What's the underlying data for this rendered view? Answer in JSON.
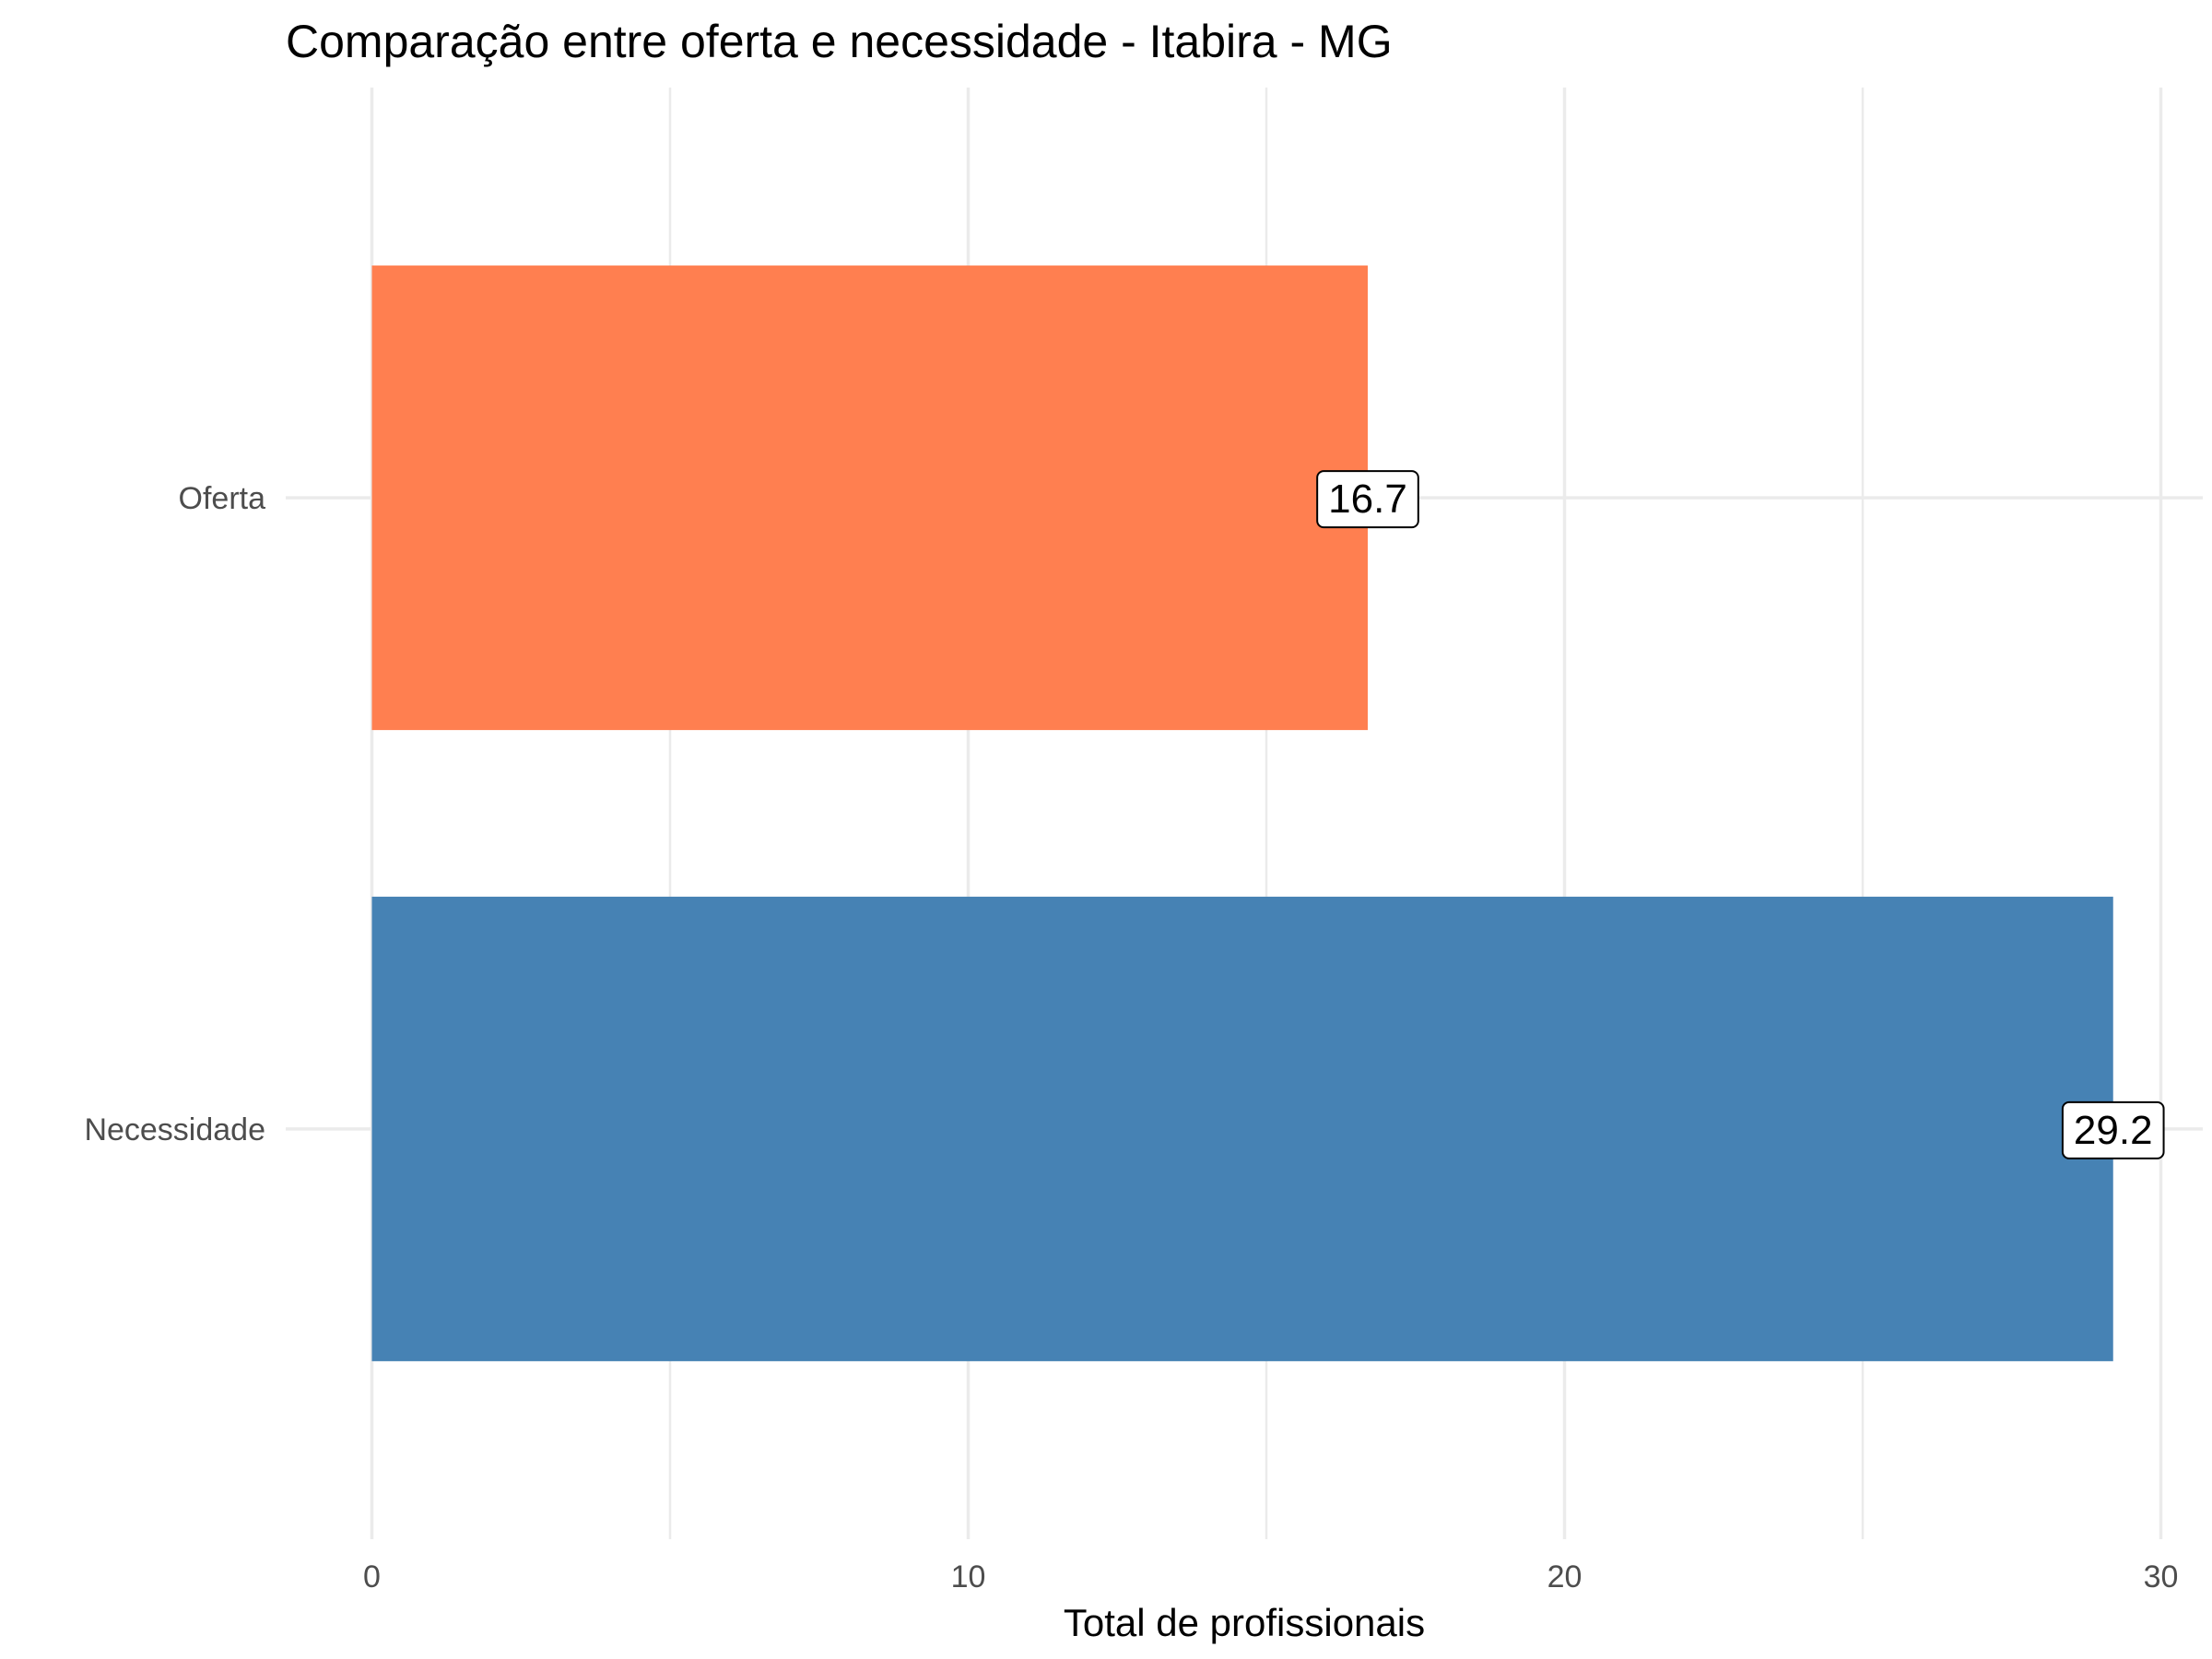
{
  "chart_data": {
    "type": "bar",
    "orientation": "horizontal",
    "title": "Comparação entre oferta e necessidade - Itabira - MG",
    "xlabel": "Total de profissionais",
    "ylabel": "",
    "categories": [
      "Necessidade",
      "Oferta"
    ],
    "values": [
      29.2,
      16.7
    ],
    "data_labels": [
      "29.2",
      "16.7"
    ],
    "colors": [
      "#4682B4",
      "#FF7F50"
    ],
    "xlim": [
      0,
      30
    ],
    "x_ticks": [
      0,
      10,
      20,
      30
    ],
    "x_tick_labels": [
      "0",
      "10",
      "20",
      "30"
    ],
    "grid": true,
    "legend": "none"
  }
}
